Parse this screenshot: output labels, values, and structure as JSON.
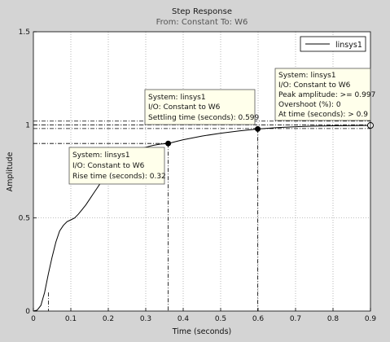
{
  "chart_data": {
    "type": "line",
    "title": "Step Response",
    "subtitle": "From: Constant  To: W6",
    "xlabel": "Time (seconds)",
    "ylabel": "Amplitude",
    "xlim": [
      0,
      0.9
    ],
    "ylim": [
      0,
      1.5
    ],
    "xticks": [
      "0",
      "0.1",
      "0.2",
      "0.3",
      "0.4",
      "0.5",
      "0.6",
      "0.7",
      "0.8",
      "0.9"
    ],
    "yticks": [
      "0",
      "0.5",
      "1",
      "1.5"
    ],
    "grid": true,
    "legend_position": "top-right",
    "series": [
      {
        "name": "linsys1",
        "color": "#000000",
        "x": [
          0,
          0.01,
          0.02,
          0.03,
          0.04,
          0.05,
          0.06,
          0.07,
          0.08,
          0.09,
          0.1,
          0.11,
          0.12,
          0.13,
          0.14,
          0.15,
          0.16,
          0.17,
          0.18,
          0.19,
          0.2,
          0.21,
          0.22,
          0.23,
          0.24,
          0.25,
          0.26,
          0.27,
          0.28,
          0.29,
          0.3,
          0.32,
          0.34,
          0.36,
          0.38,
          0.4,
          0.45,
          0.5,
          0.55,
          0.6,
          0.65,
          0.7,
          0.75,
          0.8,
          0.85,
          0.9
        ],
        "y": [
          0,
          0.005,
          0.03,
          0.1,
          0.2,
          0.29,
          0.37,
          0.43,
          0.46,
          0.48,
          0.49,
          0.5,
          0.52,
          0.545,
          0.57,
          0.6,
          0.63,
          0.66,
          0.69,
          0.72,
          0.75,
          0.775,
          0.795,
          0.81,
          0.825,
          0.838,
          0.85,
          0.86,
          0.868,
          0.875,
          0.88,
          0.89,
          0.897,
          0.9,
          0.91,
          0.92,
          0.94,
          0.955,
          0.968,
          0.978,
          0.985,
          0.99,
          0.993,
          0.995,
          0.996,
          0.997
        ]
      }
    ],
    "characteristics": {
      "steady_state_band": [
        0.98,
        1.02
      ],
      "final_value": 1,
      "rise": {
        "start_time": 0.04,
        "end_time": 0.36,
        "low": 0.1,
        "high": 0.9
      },
      "settling": {
        "time": 0.599,
        "value": 0.978
      },
      "peak": {
        "time": 0.9,
        "value": 0.997
      }
    },
    "annotations": [
      {
        "id": "rise",
        "lines": [
          "System: linsys1",
          "I/O: Constant to W6",
          "Rise time (seconds): 0.32"
        ]
      },
      {
        "id": "settling",
        "lines": [
          "System: linsys1",
          "I/O: Constant to W6",
          "Settling time (seconds): 0.599"
        ]
      },
      {
        "id": "peak",
        "lines": [
          "System: linsys1",
          "I/O: Constant to W6",
          "Peak amplitude: >= 0.997",
          "Overshoot (%): 0",
          "At time (seconds): > 0.9"
        ]
      }
    ]
  }
}
